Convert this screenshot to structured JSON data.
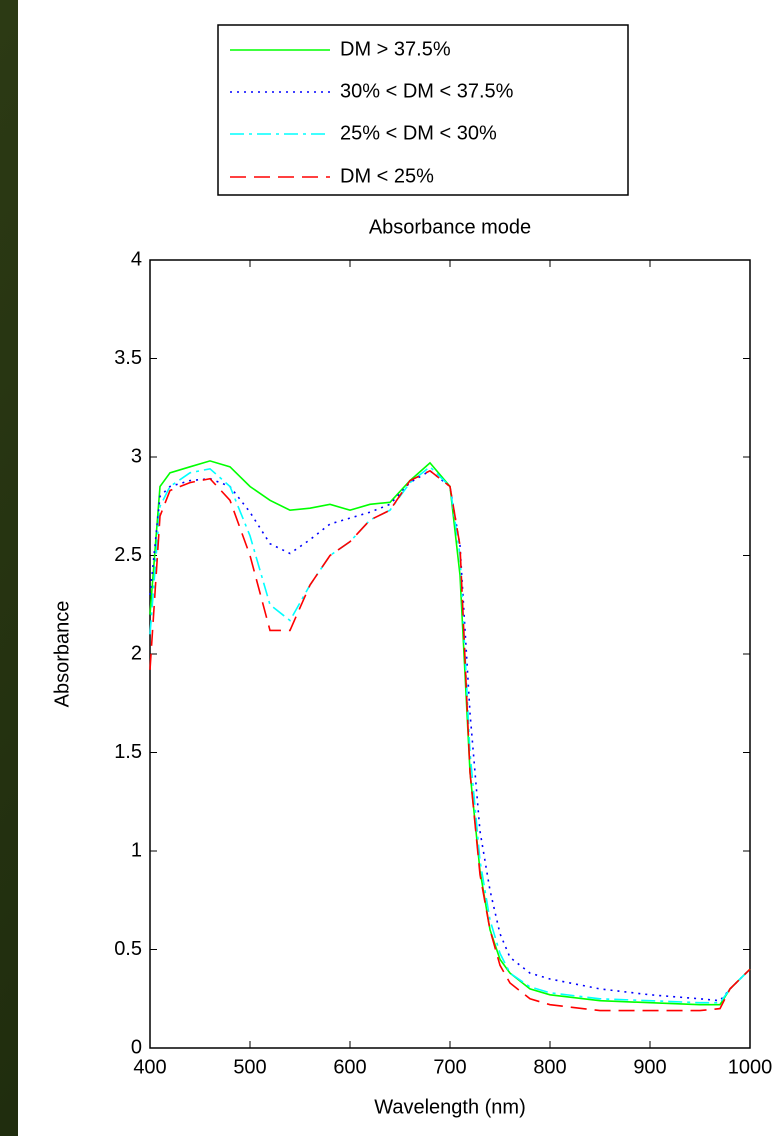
{
  "chart_data": {
    "type": "line",
    "title": "Absorbance mode",
    "x_label": "Wavelength (nm)",
    "y_label": "Absorbance",
    "x": [
      400,
      410,
      420,
      440,
      460,
      480,
      500,
      520,
      540,
      560,
      580,
      600,
      620,
      640,
      660,
      680,
      700,
      710,
      720,
      730,
      740,
      750,
      760,
      780,
      800,
      850,
      900,
      950,
      970,
      980,
      1000
    ],
    "series": [
      {
        "name": "DM > 37.5%",
        "color": "#00ff00",
        "dash": "solid",
        "values": [
          2.2,
          2.85,
          2.92,
          2.95,
          2.98,
          2.95,
          2.85,
          2.78,
          2.73,
          2.74,
          2.76,
          2.73,
          2.76,
          2.77,
          2.88,
          2.97,
          2.85,
          2.4,
          1.4,
          0.9,
          0.6,
          0.45,
          0.38,
          0.3,
          0.27,
          0.24,
          0.23,
          0.22,
          0.22,
          0.3,
          0.4
        ]
      },
      {
        "name": "30% < DM < 37.5%",
        "color": "#0000ff",
        "dash": "dotted",
        "values": [
          2.3,
          2.8,
          2.85,
          2.88,
          2.89,
          2.85,
          2.72,
          2.56,
          2.51,
          2.58,
          2.66,
          2.69,
          2.72,
          2.76,
          2.87,
          2.93,
          2.85,
          2.55,
          1.7,
          1.1,
          0.8,
          0.58,
          0.46,
          0.38,
          0.35,
          0.3,
          0.27,
          0.25,
          0.24,
          0.3,
          0.4
        ]
      },
      {
        "name": "25% < DM < 30%",
        "color": "#00ffff",
        "dash": "dashdot",
        "values": [
          2.1,
          2.75,
          2.85,
          2.92,
          2.94,
          2.85,
          2.6,
          2.25,
          2.17,
          2.35,
          2.5,
          2.57,
          2.68,
          2.73,
          2.87,
          2.95,
          2.85,
          2.5,
          1.5,
          0.95,
          0.65,
          0.48,
          0.38,
          0.31,
          0.28,
          0.25,
          0.24,
          0.23,
          0.23,
          0.3,
          0.4
        ]
      },
      {
        "name": "DM < 25%",
        "color": "#ff0000",
        "dash": "dashed",
        "values": [
          1.92,
          2.7,
          2.83,
          2.87,
          2.89,
          2.78,
          2.5,
          2.12,
          2.12,
          2.35,
          2.5,
          2.57,
          2.68,
          2.73,
          2.88,
          2.93,
          2.85,
          2.55,
          1.4,
          0.88,
          0.6,
          0.42,
          0.33,
          0.25,
          0.22,
          0.19,
          0.19,
          0.19,
          0.2,
          0.3,
          0.4
        ]
      }
    ],
    "xlim": [
      400,
      1000
    ],
    "xticks": [
      400,
      500,
      600,
      700,
      800,
      900,
      1000
    ],
    "ylim": [
      0,
      4
    ],
    "yticks": [
      0,
      0.5,
      1,
      1.5,
      2,
      2.5,
      3,
      3.5,
      4
    ],
    "grid": false,
    "legend_position": "top"
  }
}
